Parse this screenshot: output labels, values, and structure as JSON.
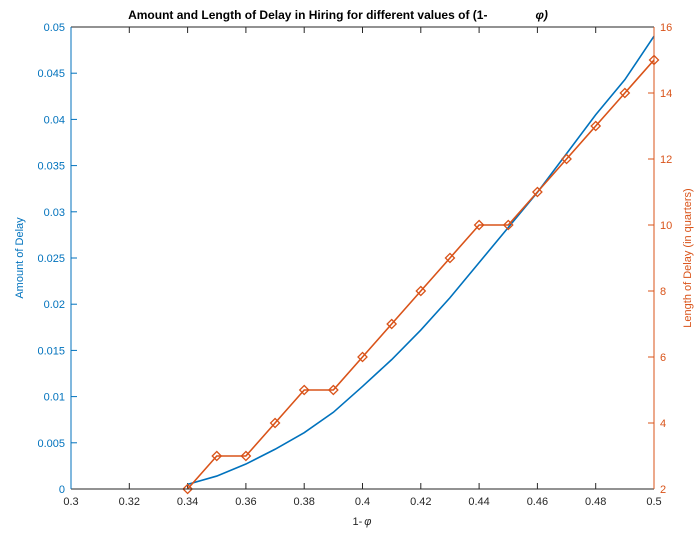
{
  "chart_data": {
    "type": "line",
    "title": "Amount and Length of Delay in Hiring for different values of (1-",
    "title_symbol": "φ)",
    "xlabel_prefix": "1-",
    "xlabel_symbol": "φ",
    "ylabel_left": "Amount of Delay",
    "ylabel_right": "Length of Delay (in quarters)",
    "xlim": [
      0.3,
      0.5
    ],
    "ylim_left": [
      0,
      0.05
    ],
    "ylim_right": [
      2,
      16
    ],
    "x_ticks": [
      "0.3",
      "0.32",
      "0.34",
      "0.36",
      "0.38",
      "0.4",
      "0.42",
      "0.44",
      "0.46",
      "0.48",
      "0.5"
    ],
    "x_tick_values": [
      0.3,
      0.32,
      0.34,
      0.36,
      0.38,
      0.4,
      0.42,
      0.44,
      0.46,
      0.48,
      0.5
    ],
    "y_left_ticks": [
      "0",
      "0.005",
      "0.01",
      "0.015",
      "0.02",
      "0.025",
      "0.03",
      "0.035",
      "0.04",
      "0.045",
      "0.05"
    ],
    "y_left_tick_values": [
      0,
      0.005,
      0.01,
      0.015,
      0.02,
      0.025,
      0.03,
      0.035,
      0.04,
      0.045,
      0.05
    ],
    "y_right_ticks": [
      "2",
      "4",
      "6",
      "8",
      "10",
      "12",
      "14",
      "16"
    ],
    "y_right_tick_values": [
      2,
      4,
      6,
      8,
      10,
      12,
      14,
      16
    ],
    "grid": false,
    "series": [
      {
        "axis": "left",
        "color": "#0072BD",
        "marker": "none",
        "x": [
          0.34,
          0.35,
          0.36,
          0.37,
          0.38,
          0.39,
          0.4,
          0.41,
          0.42,
          0.43,
          0.44,
          0.45,
          0.46,
          0.47,
          0.48,
          0.49,
          0.5
        ],
        "y": [
          0.0005,
          0.0014,
          0.0027,
          0.0043,
          0.0061,
          0.0083,
          0.0111,
          0.014,
          0.0172,
          0.0207,
          0.0245,
          0.0283,
          0.0321,
          0.0363,
          0.0405,
          0.0443,
          0.049
        ]
      },
      {
        "axis": "right",
        "color": "#D95319",
        "marker": "diamond",
        "x": [
          0.34,
          0.35,
          0.36,
          0.37,
          0.38,
          0.39,
          0.4,
          0.41,
          0.42,
          0.43,
          0.44,
          0.45,
          0.46,
          0.47,
          0.48,
          0.49,
          0.5
        ],
        "y": [
          2,
          3,
          3,
          4,
          5,
          5,
          6,
          7,
          8,
          9,
          10,
          10,
          11,
          12,
          13,
          14,
          15
        ]
      }
    ],
    "colors": {
      "left_axis": "#0072BD",
      "right_axis": "#D95319",
      "x_axis": "#262626"
    }
  }
}
